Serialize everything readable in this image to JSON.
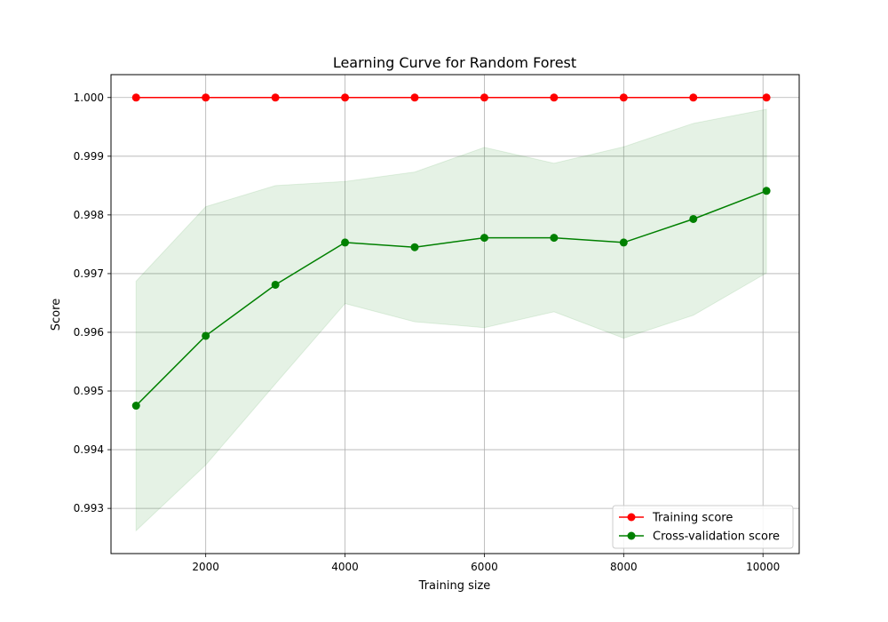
{
  "chart_data": {
    "type": "line",
    "title": "Learning Curve for Random Forest",
    "xlabel": "Training size",
    "ylabel": "Score",
    "x": [
      1000,
      2000,
      3000,
      4000,
      5000,
      6000,
      7000,
      8000,
      9000,
      10050
    ],
    "xlim": [
      640,
      10520
    ],
    "ylim": [
      0.99223,
      1.00039
    ],
    "xticks": [
      2000,
      4000,
      6000,
      8000,
      10000
    ],
    "xtick_labels": [
      "2000",
      "4000",
      "6000",
      "8000",
      "10000"
    ],
    "yticks": [
      0.993,
      0.994,
      0.995,
      0.996,
      0.997,
      0.998,
      0.999,
      1.0
    ],
    "ytick_labels": [
      "0.993",
      "0.994",
      "0.995",
      "0.996",
      "0.997",
      "0.998",
      "0.999",
      "1.000"
    ],
    "grid": true,
    "legend_position": "lower-right",
    "series": [
      {
        "name": "Training score",
        "color": "#ff0000",
        "values": [
          1.0,
          1.0,
          1.0,
          1.0,
          1.0,
          1.0,
          1.0,
          1.0,
          1.0,
          1.0
        ]
      },
      {
        "name": "Cross-validation score",
        "color": "#008000",
        "values": [
          0.99475,
          0.99594,
          0.99681,
          0.99753,
          0.99745,
          0.99761,
          0.99761,
          0.99753,
          0.99793,
          0.99841
        ],
        "band_upper": [
          0.99687,
          0.99814,
          0.9985,
          0.99857,
          0.99873,
          0.99915,
          0.99888,
          0.99916,
          0.99956,
          0.9998
        ],
        "band_lower": [
          0.99262,
          0.99374,
          0.99512,
          0.99649,
          0.99618,
          0.99608,
          0.99635,
          0.9959,
          0.99629,
          0.99701
        ],
        "band_color": "#008000"
      }
    ]
  }
}
